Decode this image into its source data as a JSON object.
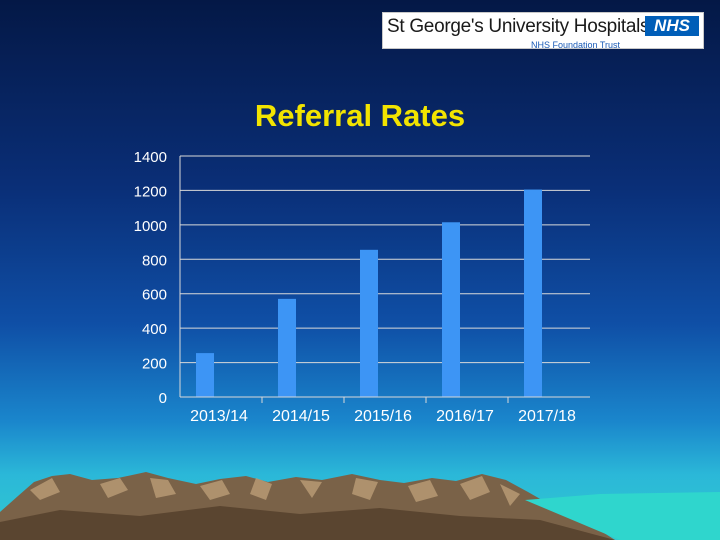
{
  "logo": {
    "name": "St George's University Hospitals",
    "badge": "NHS",
    "subtitle": "NHS Foundation Trust"
  },
  "title": "Referral Rates",
  "colors": {
    "bar": "#3d95f5",
    "title": "#f2e400",
    "axis_text": "#ffffff",
    "grid": "#d9d9d9"
  },
  "chart_data": {
    "type": "bar",
    "categories": [
      "2013/14",
      "2014/15",
      "2015/16",
      "2016/17",
      "2017/18"
    ],
    "values": [
      255,
      570,
      855,
      1015,
      1205
    ],
    "ylim": [
      0,
      1400
    ],
    "yticks": [
      0,
      200,
      400,
      600,
      800,
      1000,
      1200,
      1400
    ],
    "grid": true,
    "legend": "none"
  }
}
